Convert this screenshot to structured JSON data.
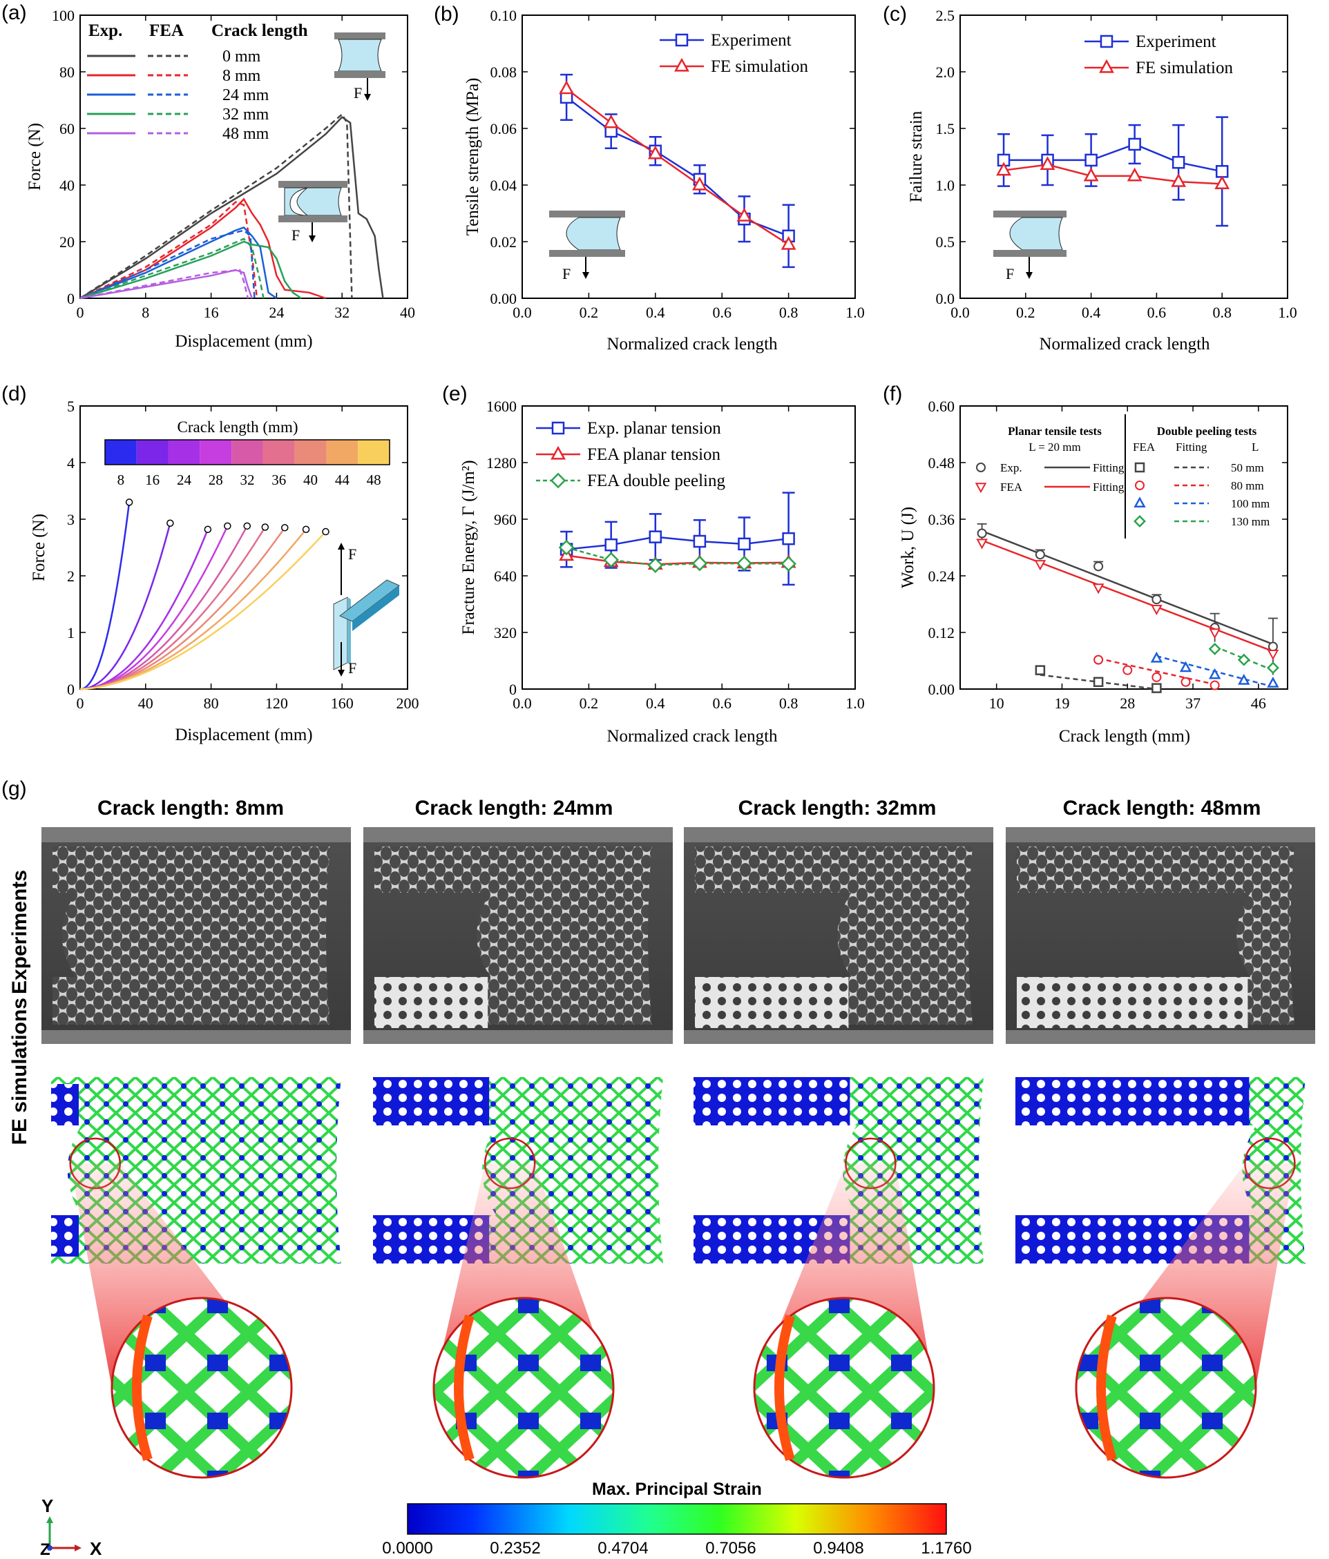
{
  "panel_labels": {
    "a": "(a)",
    "b": "(b)",
    "c": "(c)",
    "d": "(d)",
    "e": "(e)",
    "f": "(f)",
    "g": "(g)"
  },
  "colors": {
    "black": "#444444",
    "red": "#e8242b",
    "blue": "#1a5ed8",
    "green": "#28a05a",
    "purple": "#b45ee0",
    "fea_green": "#2aa34a",
    "marker_blue": "#1d2fd6",
    "marker_red": "#e8242b"
  },
  "chart_data": [
    {
      "id": "a",
      "type": "line",
      "xlabel": "Displacement (mm)",
      "ylabel": "Force (N)",
      "xlim": [
        0,
        40
      ],
      "ylim": [
        0,
        100
      ],
      "xticks": [
        "0",
        "8",
        "16",
        "24",
        "32",
        "40"
      ],
      "yticks": [
        "0",
        "20",
        "40",
        "60",
        "80",
        "100"
      ],
      "legend_headers": [
        "Exp.",
        "FEA",
        "Crack length"
      ],
      "series": [
        {
          "name": "0 mm",
          "color": "#444444",
          "exp": [
            [
              0,
              0
            ],
            [
              8,
              14
            ],
            [
              16,
              30
            ],
            [
              24,
              44
            ],
            [
              30,
              58
            ],
            [
              32,
              64
            ],
            [
              33,
              62
            ],
            [
              34,
              30
            ],
            [
              35,
              28
            ],
            [
              35.5,
              25
            ],
            [
              36,
              22
            ],
            [
              36.5,
              10
            ],
            [
              37,
              0
            ]
          ],
          "fea": [
            [
              0,
              0
            ],
            [
              8,
              15
            ],
            [
              16,
              31
            ],
            [
              24,
              46
            ],
            [
              30,
              60
            ],
            [
              32,
              65
            ],
            [
              32.6,
              62
            ],
            [
              33.2,
              0
            ]
          ]
        },
        {
          "name": "8 mm",
          "color": "#e8242b",
          "exp": [
            [
              0,
              0
            ],
            [
              8,
              10
            ],
            [
              16,
              25
            ],
            [
              19,
              32
            ],
            [
              20,
              35
            ],
            [
              21,
              30
            ],
            [
              22,
              26
            ],
            [
              23,
              20
            ],
            [
              24,
              8
            ],
            [
              25,
              3
            ],
            [
              28,
              2
            ],
            [
              30,
              0
            ]
          ],
          "fea": [
            [
              0,
              0
            ],
            [
              8,
              11
            ],
            [
              16,
              26
            ],
            [
              19,
              34
            ],
            [
              20,
              33
            ],
            [
              21,
              15
            ],
            [
              21.6,
              0
            ]
          ]
        },
        {
          "name": "24 mm",
          "color": "#1a5ed8",
          "exp": [
            [
              0,
              0
            ],
            [
              8,
              9
            ],
            [
              16,
              20
            ],
            [
              19,
              24
            ],
            [
              20,
              25
            ],
            [
              21,
              22
            ],
            [
              22,
              18
            ],
            [
              22.5,
              10
            ],
            [
              23,
              2
            ],
            [
              24,
              0
            ]
          ],
          "fea": [
            [
              0,
              0
            ],
            [
              8,
              10
            ],
            [
              16,
              21
            ],
            [
              20,
              24
            ],
            [
              20.8,
              22
            ],
            [
              21.3,
              0
            ]
          ]
        },
        {
          "name": "32 mm",
          "color": "#28a05a",
          "exp": [
            [
              0,
              0
            ],
            [
              8,
              7
            ],
            [
              16,
              15
            ],
            [
              20,
              20
            ],
            [
              21,
              19
            ],
            [
              23,
              18
            ],
            [
              24,
              14
            ],
            [
              25,
              6
            ],
            [
              26,
              2
            ],
            [
              27,
              0
            ]
          ],
          "fea": [
            [
              0,
              0
            ],
            [
              8,
              8
            ],
            [
              16,
              16
            ],
            [
              20,
              21
            ],
            [
              21,
              18
            ],
            [
              22,
              6
            ],
            [
              22.4,
              0
            ]
          ]
        },
        {
          "name": "48 mm",
          "color": "#b45ee0",
          "exp": [
            [
              0,
              0
            ],
            [
              8,
              4
            ],
            [
              16,
              8
            ],
            [
              19,
              10
            ],
            [
              20,
              9
            ],
            [
              20.5,
              4
            ],
            [
              21,
              0
            ]
          ],
          "fea": [
            [
              0,
              0
            ],
            [
              8,
              4.5
            ],
            [
              16,
              9
            ],
            [
              19.5,
              10
            ],
            [
              20,
              6
            ],
            [
              20.5,
              0
            ]
          ]
        }
      ]
    },
    {
      "id": "b",
      "type": "line",
      "xlabel": "Normalized crack length",
      "ylabel": "Tensile strength (MPa)",
      "xlim": [
        0,
        1
      ],
      "ylim": [
        0,
        0.1
      ],
      "xticks": [
        "0.0",
        "0.2",
        "0.4",
        "0.6",
        "0.8",
        "1.0"
      ],
      "yticks": [
        "0.00",
        "0.02",
        "0.04",
        "0.06",
        "0.08",
        "0.10"
      ],
      "series": [
        {
          "name": "Experiment",
          "marker": "square",
          "color": "#1d2fd6",
          "x": [
            0.133,
            0.267,
            0.4,
            0.533,
            0.667,
            0.8
          ],
          "y": [
            0.071,
            0.059,
            0.052,
            0.042,
            0.028,
            0.022
          ],
          "err": [
            0.008,
            0.006,
            0.005,
            0.005,
            0.008,
            0.011
          ]
        },
        {
          "name": "FE simulation",
          "marker": "triangle",
          "color": "#e8242b",
          "x": [
            0.133,
            0.267,
            0.4,
            0.533,
            0.667,
            0.8
          ],
          "y": [
            0.074,
            0.062,
            0.051,
            0.04,
            0.029,
            0.019
          ],
          "err": []
        }
      ]
    },
    {
      "id": "c",
      "type": "line",
      "xlabel": "Normalized crack length",
      "ylabel": "Failure strain",
      "xlim": [
        0,
        1
      ],
      "ylim": [
        0,
        2.5
      ],
      "xticks": [
        "0.0",
        "0.2",
        "0.4",
        "0.6",
        "0.8",
        "1.0"
      ],
      "yticks": [
        "0.0",
        "0.5",
        "1.0",
        "1.5",
        "2.0",
        "2.5"
      ],
      "series": [
        {
          "name": "Experiment",
          "marker": "square",
          "color": "#1d2fd6",
          "x": [
            0.133,
            0.267,
            0.4,
            0.533,
            0.667,
            0.8
          ],
          "y": [
            1.22,
            1.22,
            1.22,
            1.36,
            1.2,
            1.12
          ],
          "err": [
            0.23,
            0.22,
            0.23,
            0.17,
            0.33,
            0.48
          ]
        },
        {
          "name": "FE simulation",
          "marker": "triangle",
          "color": "#e8242b",
          "x": [
            0.133,
            0.267,
            0.4,
            0.533,
            0.667,
            0.8
          ],
          "y": [
            1.13,
            1.18,
            1.08,
            1.08,
            1.03,
            1.01
          ],
          "err": []
        }
      ]
    },
    {
      "id": "d",
      "type": "line",
      "title": "Crack length (mm)",
      "xlabel": "Displacement (mm)",
      "ylabel": "Force (N)",
      "xlim": [
        0,
        200
      ],
      "ylim": [
        0,
        5
      ],
      "xticks": [
        "0",
        "40",
        "80",
        "120",
        "160",
        "200"
      ],
      "yticks": [
        "0",
        "1",
        "2",
        "3",
        "4",
        "5"
      ],
      "colorbar_labels": [
        "8",
        "16",
        "24",
        "28",
        "32",
        "36",
        "40",
        "44",
        "48"
      ],
      "colorbar_colors": [
        "#2b2bf0",
        "#7b26e8",
        "#a530e6",
        "#c63ee0",
        "#d65aa8",
        "#e2708e",
        "#ea8a78",
        "#f1a864",
        "#f9cf5c"
      ],
      "curves": [
        {
          "crack": "8",
          "end_x": 30,
          "end_y": 3.3
        },
        {
          "crack": "16",
          "end_x": 55,
          "end_y": 2.93
        },
        {
          "crack": "24",
          "end_x": 78,
          "end_y": 2.82
        },
        {
          "crack": "28",
          "end_x": 90,
          "end_y": 2.88
        },
        {
          "crack": "32",
          "end_x": 102,
          "end_y": 2.88
        },
        {
          "crack": "36",
          "end_x": 113,
          "end_y": 2.86
        },
        {
          "crack": "40",
          "end_x": 125,
          "end_y": 2.85
        },
        {
          "crack": "44",
          "end_x": 138,
          "end_y": 2.82
        },
        {
          "crack": "48",
          "end_x": 150,
          "end_y": 2.78
        }
      ]
    },
    {
      "id": "e",
      "type": "line",
      "xlabel": "Normalized crack length",
      "ylabel": "Fracture Energy, Γ (J/m²)",
      "xlim": [
        0,
        1
      ],
      "ylim": [
        0,
        1600
      ],
      "xticks": [
        "0.0",
        "0.2",
        "0.4",
        "0.6",
        "0.8",
        "1.0"
      ],
      "yticks": [
        "0",
        "320",
        "640",
        "960",
        "1280",
        "1600"
      ],
      "series": [
        {
          "name": "Exp. planar tension",
          "marker": "square",
          "color": "#1d2fd6",
          "x": [
            0.133,
            0.267,
            0.4,
            0.533,
            0.667,
            0.8
          ],
          "y": [
            790,
            815,
            860,
            835,
            820,
            850
          ],
          "err": [
            100,
            130,
            130,
            120,
            150,
            260
          ]
        },
        {
          "name": "FEA planar tension",
          "marker": "triangle",
          "color": "#e8242b",
          "x": [
            0.133,
            0.267,
            0.4,
            0.533,
            0.667,
            0.8
          ],
          "y": [
            755,
            720,
            705,
            715,
            712,
            715
          ],
          "err": []
        },
        {
          "name": "FEA double peeling",
          "marker": "diamond",
          "color": "#2aa34a",
          "x": [
            0.133,
            0.267,
            0.4,
            0.533,
            0.667,
            0.8
          ],
          "y": [
            800,
            730,
            700,
            710,
            710,
            708
          ],
          "err": []
        }
      ]
    },
    {
      "id": "f",
      "type": "scatter",
      "xlabel": "Crack length (mm)",
      "ylabel": "Work, U (J)",
      "xlim": [
        5,
        50
      ],
      "ylim": [
        0,
        0.6
      ],
      "xticks": [
        "10",
        "19",
        "28",
        "37",
        "46"
      ],
      "yticks": [
        "0.00",
        "0.12",
        "0.24",
        "0.36",
        "0.48",
        "0.60"
      ],
      "legend": {
        "planar_title": "Planar tensile tests",
        "planar_sub": "L = 20 mm",
        "exp": "Exp.",
        "fea": "FEA",
        "fitting": "Fitting",
        "double_title": "Double peeling tests",
        "col_fea": "FEA",
        "col_fitting": "Fitting",
        "col_L": "L",
        "lengths": [
          "50   mm",
          "80   mm",
          "100 mm",
          "130 mm"
        ]
      },
      "series": [
        {
          "name": "Exp.",
          "marker": "circle",
          "color": "#444444",
          "x": [
            8,
            16,
            24,
            32,
            40,
            48
          ],
          "y": [
            0.33,
            0.285,
            0.26,
            0.19,
            0.13,
            0.09
          ],
          "err": [
            0.02,
            0.01,
            0.01,
            0.01,
            0.03,
            0.06
          ],
          "fit": [
            [
              8,
              0.335
            ],
            [
              48,
              0.095
            ]
          ]
        },
        {
          "name": "FEA",
          "marker": "triangle-down",
          "color": "#e8242b",
          "x": [
            8,
            16,
            24,
            32,
            40,
            48
          ],
          "y": [
            0.31,
            0.265,
            0.215,
            0.17,
            0.12,
            0.075
          ],
          "fit": [
            [
              8,
              0.315
            ],
            [
              48,
              0.08
            ]
          ]
        },
        {
          "name": "50 mm",
          "marker": "square",
          "color": "#444444",
          "x": [
            16,
            24,
            32
          ],
          "y": [
            0.04,
            0.015,
            0.002
          ],
          "fit": [
            [
              16,
              0.03
            ],
            [
              32,
              0.0
            ]
          ]
        },
        {
          "name": "80 mm",
          "marker": "circle",
          "color": "#e8242b",
          "x": [
            24,
            28,
            32,
            36,
            40
          ],
          "y": [
            0.062,
            0.04,
            0.025,
            0.015,
            0.008
          ],
          "fit": [
            [
              24,
              0.065
            ],
            [
              40,
              0.01
            ]
          ]
        },
        {
          "name": "100 mm",
          "marker": "triangle",
          "color": "#1a5ed8",
          "x": [
            32,
            36,
            40,
            44,
            48
          ],
          "y": [
            0.065,
            0.045,
            0.03,
            0.018,
            0.012
          ],
          "fit": [
            [
              32,
              0.07
            ],
            [
              48,
              0.005
            ]
          ]
        },
        {
          "name": "130 mm",
          "marker": "diamond",
          "color": "#2aa34a",
          "x": [
            40,
            44,
            48
          ],
          "y": [
            0.085,
            0.062,
            0.045
          ],
          "fit": [
            [
              40,
              0.09
            ],
            [
              48,
              0.04
            ]
          ]
        }
      ]
    }
  ],
  "panel_g": {
    "titles": [
      "Crack length: 8mm",
      "Crack length: 24mm",
      "Crack length: 32mm",
      "Crack length: 48mm"
    ],
    "row_labels": [
      "Experiments",
      "FE simulations"
    ],
    "colorbar_title": "Max. Principal Strain",
    "colorbar_ticks": [
      "0.0000",
      "0.2352",
      "0.4704",
      "0.7056",
      "0.9408",
      "1.1760"
    ],
    "axes": {
      "y": "Y",
      "z": "Z",
      "x": "X"
    }
  },
  "schematic_force": "F"
}
